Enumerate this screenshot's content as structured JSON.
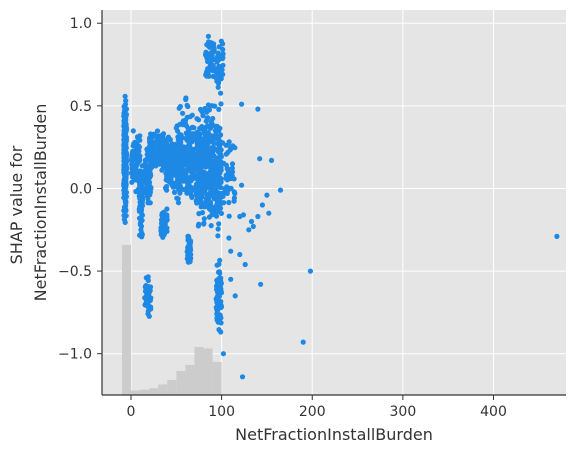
{
  "chart_data": {
    "type": "scatter",
    "title": "",
    "xlabel": "NetFractionInstallBurden",
    "ylabel_lines": [
      "SHAP value for",
      "NetFractionInstallBurden"
    ],
    "xlim": [
      -32,
      480
    ],
    "ylim": [
      -1.25,
      1.08
    ],
    "xticks": [
      0,
      100,
      200,
      300,
      400
    ],
    "yticks": [
      -1.0,
      -0.5,
      0.0,
      0.5,
      1.0
    ],
    "xtick_labels": [
      "0",
      "100",
      "200",
      "300",
      "400"
    ],
    "ytick_labels": [
      "−1.0",
      "−0.5",
      "0.0",
      "0.5",
      "1.0"
    ],
    "grid": true,
    "legend": "none",
    "colors": {
      "points": "#1E88E5",
      "histogram": "#cccccc",
      "plot_background": "#e5e5e5",
      "grid": "#ffffff",
      "axis": "#333333"
    },
    "histogram": {
      "note": "bar heights are relative frequency (0-1) of the feature value distribution",
      "bins": [
        {
          "x0": -10,
          "x1": 0,
          "rel": 1.0
        },
        {
          "x0": 0,
          "x1": 10,
          "rel": 0.03
        },
        {
          "x0": 10,
          "x1": 20,
          "rel": 0.035
        },
        {
          "x0": 20,
          "x1": 30,
          "rel": 0.045
        },
        {
          "x0": 30,
          "x1": 40,
          "rel": 0.07
        },
        {
          "x0": 40,
          "x1": 50,
          "rel": 0.1
        },
        {
          "x0": 50,
          "x1": 60,
          "rel": 0.16
        },
        {
          "x0": 60,
          "x1": 70,
          "rel": 0.2
        },
        {
          "x0": 70,
          "x1": 80,
          "rel": 0.32
        },
        {
          "x0": 80,
          "x1": 90,
          "rel": 0.31
        },
        {
          "x0": 90,
          "x1": 100,
          "rel": 0.22
        },
        {
          "x0": 100,
          "x1": 110,
          "rel": 0.0
        },
        {
          "x0": 110,
          "x1": 120,
          "rel": 0.0
        },
        {
          "x0": 120,
          "x1": 130,
          "rel": 0.0
        },
        {
          "x0": 130,
          "x1": 140,
          "rel": 0.0
        }
      ]
    },
    "clusters": [
      {
        "x_min": -8,
        "x_max": -5,
        "y_min": -0.28,
        "y_max": 0.65,
        "n": 260
      },
      {
        "x_min": 0,
        "x_max": 10,
        "y_min": -0.05,
        "y_max": 0.4,
        "n": 80
      },
      {
        "x_min": 9,
        "x_max": 13,
        "y_min": -0.36,
        "y_max": 0.2,
        "n": 80
      },
      {
        "x_min": 15,
        "x_max": 22,
        "y_min": -0.82,
        "y_max": -0.5,
        "n": 45
      },
      {
        "x_min": 15,
        "x_max": 22,
        "y_min": -0.15,
        "y_max": 0.3,
        "n": 60
      },
      {
        "x_min": 20,
        "x_max": 40,
        "y_min": 0.05,
        "y_max": 0.37,
        "n": 180
      },
      {
        "x_min": 33,
        "x_max": 40,
        "y_min": -0.35,
        "y_max": -0.08,
        "n": 60
      },
      {
        "x_min": 38,
        "x_max": 52,
        "y_min": -0.1,
        "y_max": 0.38,
        "n": 100
      },
      {
        "x_min": 50,
        "x_max": 70,
        "y_min": -0.2,
        "y_max": 0.6,
        "n": 220
      },
      {
        "x_min": 62,
        "x_max": 66,
        "y_min": -0.52,
        "y_max": -0.2,
        "n": 40
      },
      {
        "x_min": 72,
        "x_max": 100,
        "y_min": -0.35,
        "y_max": 0.6,
        "n": 450
      },
      {
        "x_min": 82,
        "x_max": 92,
        "y_min": 0.6,
        "y_max": 0.97,
        "n": 60
      },
      {
        "x_min": 94,
        "x_max": 102,
        "y_min": 0.55,
        "y_max": 0.97,
        "n": 40
      },
      {
        "x_min": 94,
        "x_max": 100,
        "y_min": -0.95,
        "y_max": -0.35,
        "n": 70
      },
      {
        "x_min": 100,
        "x_max": 115,
        "y_min": -0.25,
        "y_max": 0.45,
        "n": 40
      }
    ],
    "points": [
      [
        470,
        -0.29
      ],
      [
        190,
        -0.93
      ],
      [
        198,
        -0.5
      ],
      [
        165,
        -0.01
      ],
      [
        155,
        0.17
      ],
      [
        152,
        -0.15
      ],
      [
        150,
        -0.04
      ],
      [
        145,
        -0.1
      ],
      [
        143,
        -0.58
      ],
      [
        142,
        0.18
      ],
      [
        140,
        -0.17
      ],
      [
        140,
        0.48
      ],
      [
        135,
        -0.23
      ],
      [
        133,
        -0.2
      ],
      [
        130,
        -0.25
      ],
      [
        126,
        -0.46
      ],
      [
        124,
        -0.16
      ],
      [
        122,
        0.02
      ],
      [
        120,
        -0.4
      ],
      [
        120,
        -0.17
      ],
      [
        115,
        -0.65
      ],
      [
        110,
        0.06
      ],
      [
        108,
        -0.3
      ],
      [
        105,
        0.08
      ],
      [
        102,
        -1.0
      ],
      [
        123,
        -1.14
      ],
      [
        122,
        0.51
      ],
      [
        110,
        -0.55
      ],
      [
        110,
        -0.38
      ],
      [
        112,
        0.1
      ]
    ]
  }
}
